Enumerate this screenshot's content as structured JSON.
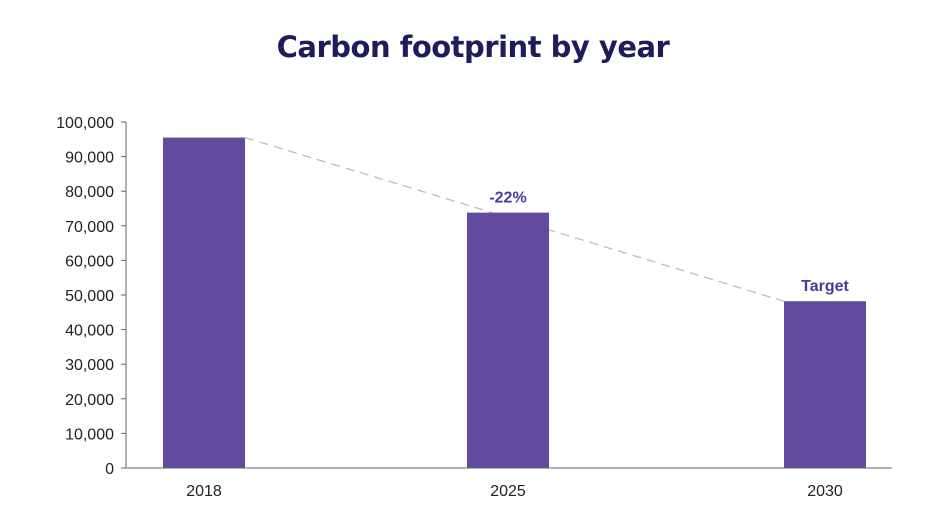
{
  "chart_data": {
    "type": "bar",
    "title": "Carbon footprint by year",
    "xlabel": "",
    "ylabel": "",
    "categories": [
      "2018",
      "2025",
      "2030"
    ],
    "values": [
      95500,
      73800,
      48200
    ],
    "ylim": [
      0,
      100000
    ],
    "yticks": [
      0,
      10000,
      20000,
      30000,
      40000,
      50000,
      60000,
      70000,
      80000,
      90000,
      100000
    ],
    "ytick_labels": [
      "0",
      "10,000",
      "20,000",
      "30,000",
      "40,000",
      "50,000",
      "60,000",
      "70,000",
      "80,000",
      "90,000",
      "100,000"
    ],
    "bar_color": "#624b9e",
    "annotations": [
      {
        "category": "2025",
        "text": "-22%"
      },
      {
        "category": "2030",
        "text": "Target"
      }
    ],
    "trend_line": {
      "style": "dashed",
      "from": "2018",
      "to": "2030",
      "color": "#bdbdbd"
    },
    "grid": false,
    "legend": "none"
  },
  "colors": {
    "title": "#1f1c5c",
    "annotation": "#4a3a9a",
    "axis": "#666666"
  }
}
